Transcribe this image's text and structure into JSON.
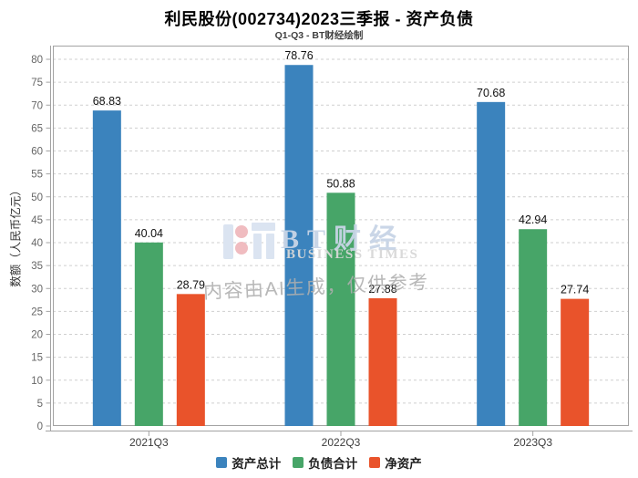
{
  "chart_data": {
    "type": "bar",
    "title": "利民股份(002734)2023三季报 - 资产负债",
    "subtitle": "Q1-Q3 - BT财经绘制",
    "ylabel": "数额（人民币亿元）",
    "xlabel": "",
    "categories": [
      "2021Q3",
      "2022Q3",
      "2023Q3"
    ],
    "series": [
      {
        "name": "资产总计",
        "color": "#3b83bd",
        "values": [
          68.83,
          78.76,
          70.68
        ]
      },
      {
        "name": "负债合计",
        "color": "#47a568",
        "values": [
          40.04,
          50.88,
          42.94
        ]
      },
      {
        "name": "净资产",
        "color": "#e9532b",
        "values": [
          28.79,
          27.88,
          27.74
        ]
      }
    ],
    "ylim": [
      0,
      80
    ],
    "ytick_step": 5,
    "grid": true,
    "grid_style": "dashed",
    "legend_position": "bottom"
  },
  "watermark": {
    "brand_cn": "BT财经",
    "brand_en": "BUSINESS TIMES",
    "disclaimer": "内容由AI生成，仅供参考"
  },
  "colors": {
    "axis": "#a3a3a3",
    "grid": "#cfcfcf",
    "tick_label": "#666666",
    "category_label": "#3d3d3d",
    "value_label": "#111111",
    "logo_bar": "#dbe4f1",
    "logo_dot": "#f0bcc0"
  }
}
